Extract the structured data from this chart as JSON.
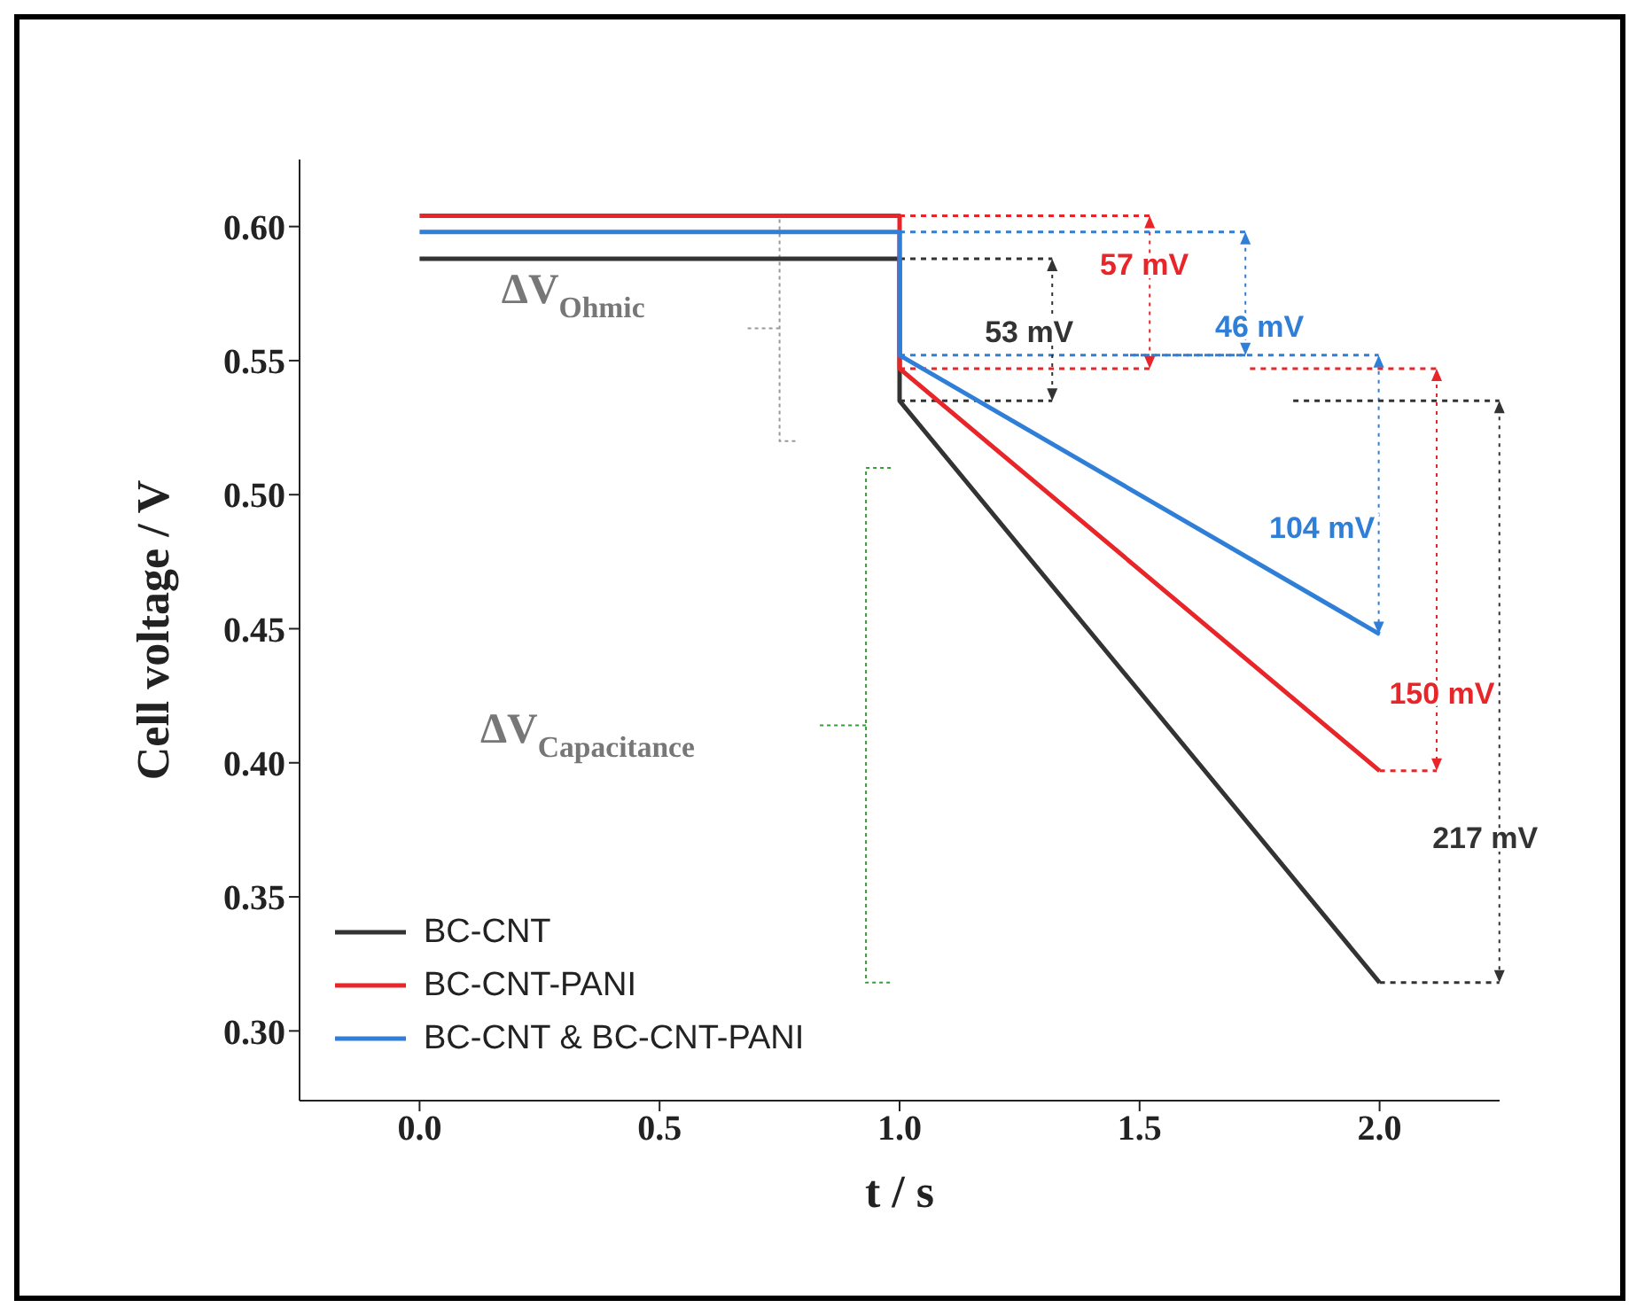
{
  "chart_data": {
    "type": "line",
    "xlabel": "t / s",
    "ylabel": "Cell voltage / V",
    "xlim": [
      -0.25,
      2.25
    ],
    "xticks": [
      {
        "value": 0,
        "label": "0.0"
      },
      0.5,
      {
        "value": 1,
        "label": "1.0"
      },
      1.5,
      {
        "value": 2,
        "label": "2.0"
      }
    ],
    "ylim": [
      0.274,
      0.625
    ],
    "yticks": [
      {
        "value": 0.3,
        "label": "0.30"
      },
      0.35,
      {
        "value": 0.4,
        "label": "0.40"
      },
      0.45,
      {
        "value": 0.5,
        "label": "0.50"
      },
      0.55,
      {
        "value": 0.6,
        "label": "0.60"
      }
    ],
    "grid": false,
    "legend": "bottom left",
    "marker": "none",
    "line_style": "solid",
    "series": [
      {
        "name": "BC-CNT",
        "color": "#333333",
        "x": [
          0,
          1,
          1,
          2
        ],
        "values": [
          0.588,
          0.588,
          0.535,
          0.318
        ]
      },
      {
        "name": "BC-CNT-PANI",
        "color": "#e8262a",
        "x": [
          0,
          1,
          1,
          2
        ],
        "values": [
          0.604,
          0.604,
          0.547,
          0.397
        ]
      },
      {
        "name": "BC-CNT & BC-CNT-PANI",
        "color": "#2f7fd8",
        "x": [
          0,
          1,
          1,
          2
        ],
        "values": [
          0.598,
          0.598,
          0.552,
          0.448
        ]
      }
    ],
    "annotations": [
      "ΔV$_{Ohmic}$",
      "ΔV$_{Capacitance}$",
      {
        "text": "57 mV",
        "x": 1,
        "y": 0.604
      },
      {
        "text": "46 mV",
        "x": 1,
        "y": 0.552
      },
      "53 mV",
      "104 mV",
      "150 mV",
      "217 mV"
    ]
  }
}
